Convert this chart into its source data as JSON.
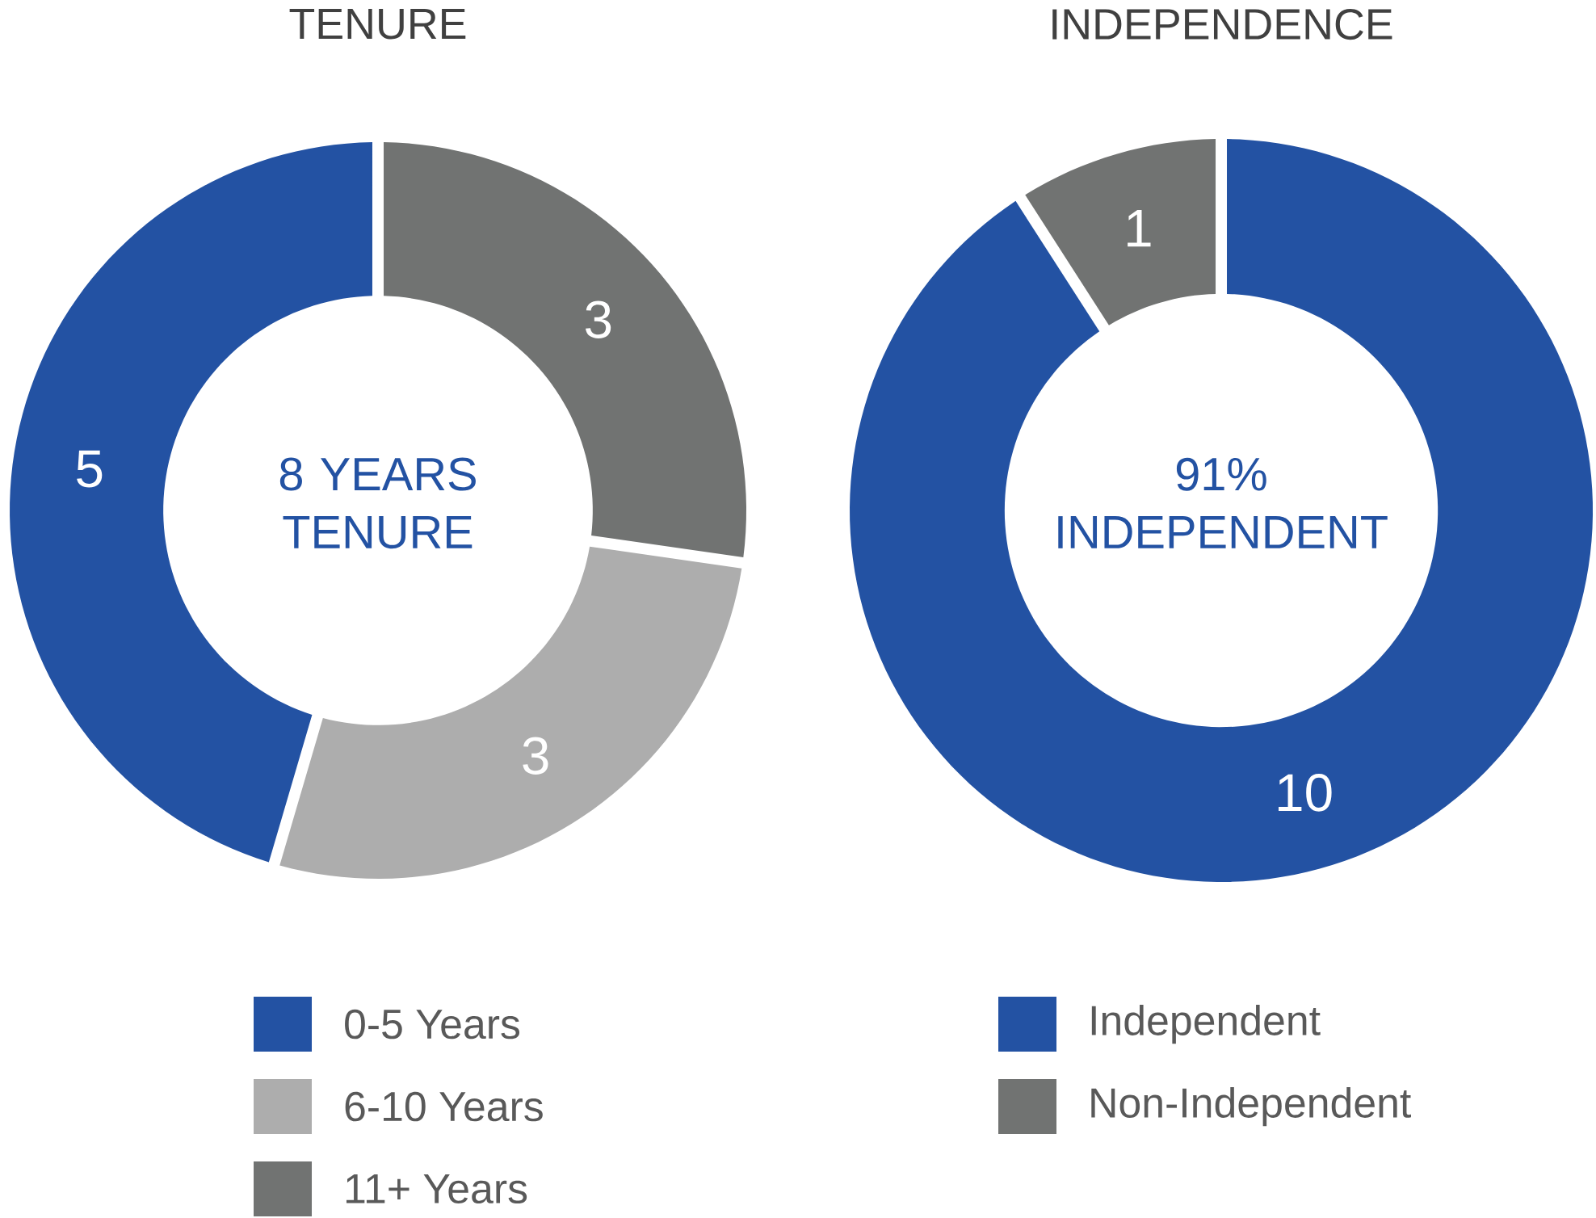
{
  "chart_data": [
    {
      "type": "donut",
      "title": "TENURE",
      "categories": [
        "0-5 Years",
        "6-10 Years",
        "11+ Years"
      ],
      "values": [
        5,
        3,
        3
      ],
      "colors": [
        "#2352a3",
        "#adadad",
        "#717372"
      ],
      "data_labels": true,
      "legend": "bottom",
      "annotations": [
        "8 YEARS TENURE"
      ]
    },
    {
      "type": "donut",
      "title": "INDEPENDENCE",
      "categories": [
        "Independent",
        "Non-Independent"
      ],
      "values": [
        10,
        1
      ],
      "colors": [
        "#2352a3",
        "#717372"
      ],
      "data_labels": true,
      "legend": "bottom",
      "annotations": [
        "91% INDEPENDENT"
      ]
    }
  ]
}
